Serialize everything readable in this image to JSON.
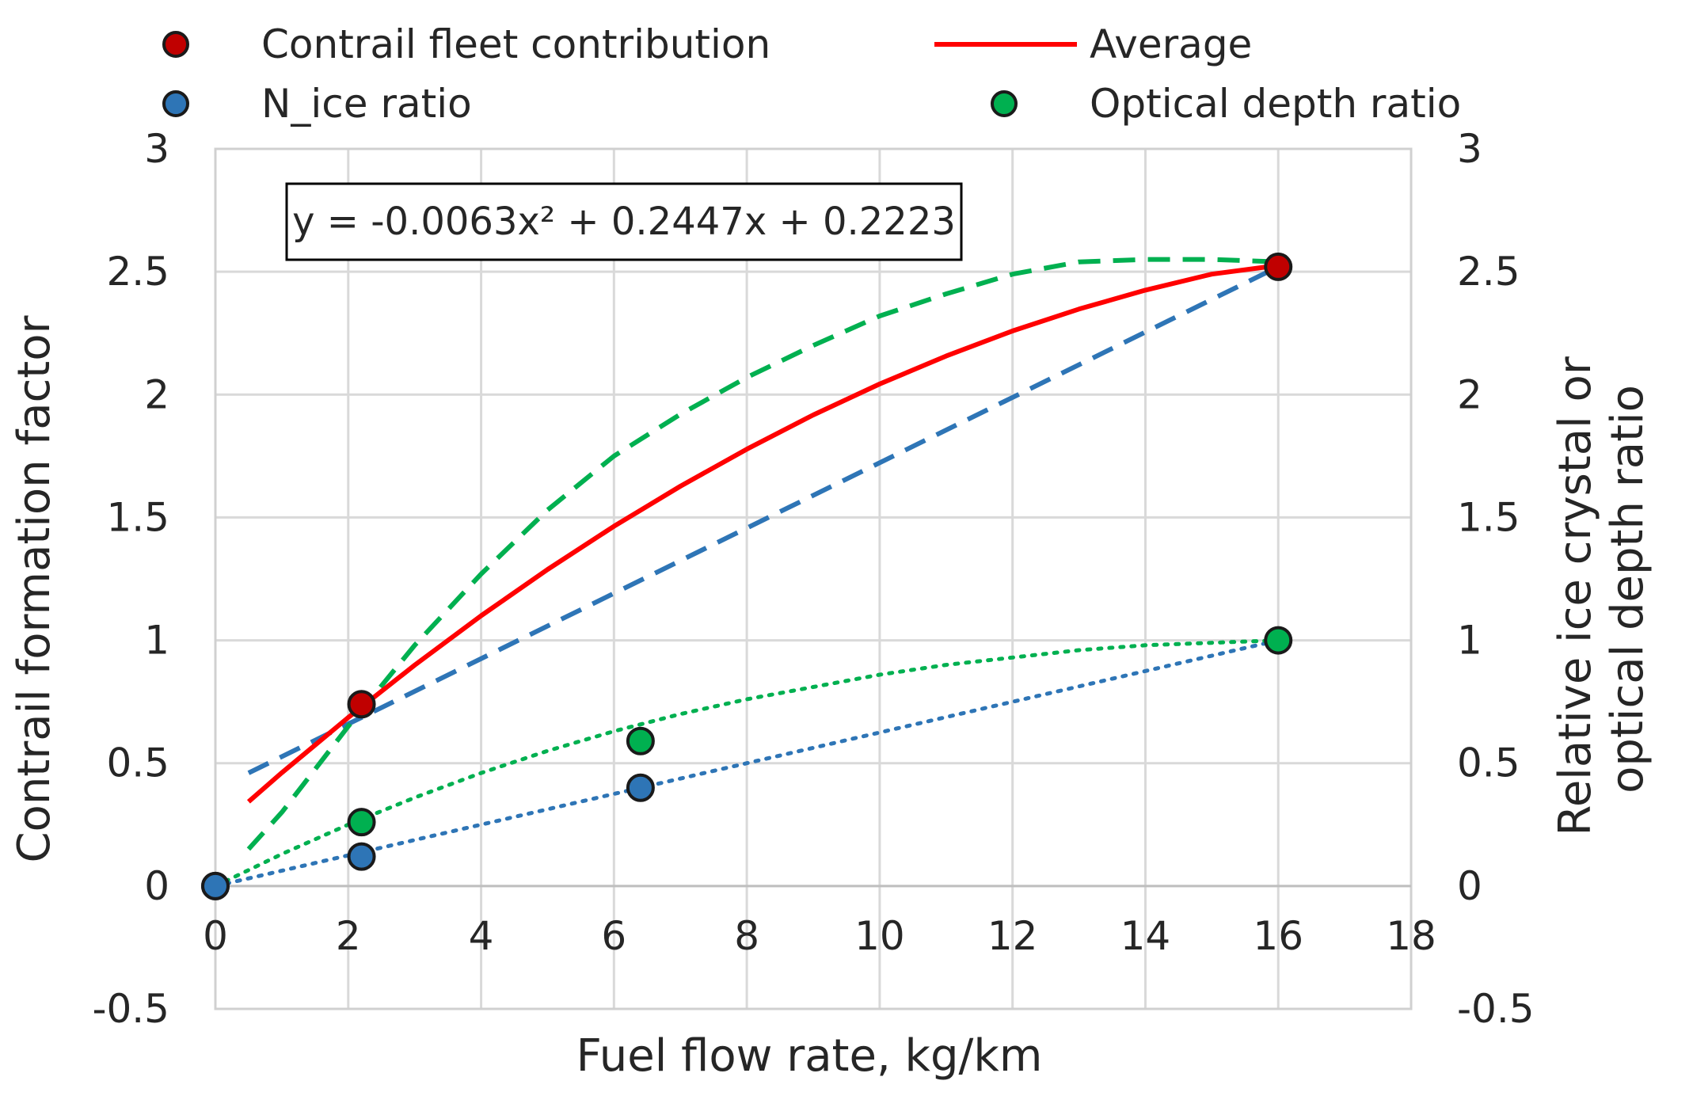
{
  "chart_data": {
    "type": "scatter",
    "xlabel": "Fuel flow rate, kg/km",
    "ylabel": "Contrail formation factor",
    "y2label_lines": [
      "Relative ice crystal or",
      "optical depth ratio"
    ],
    "xlim": [
      0,
      18
    ],
    "ylim": [
      -0.5,
      3
    ],
    "y2lim": [
      -0.5,
      3
    ],
    "x_ticks": [
      "0",
      "2",
      "4",
      "6",
      "8",
      "10",
      "12",
      "14",
      "16",
      "18"
    ],
    "y_ticks": [
      "-0.5",
      "0",
      "0.5",
      "1",
      "1.5",
      "2",
      "2.5",
      "3"
    ],
    "y2_ticks": [
      "-0.5",
      "0",
      "0.5",
      "1",
      "1.5",
      "2",
      "2.5",
      "3"
    ],
    "grid": true,
    "legend_position": "top",
    "equation": "y = -0.0063x² + 0.2447x + 0.2223",
    "series": [
      {
        "name": "Contrail fleet contribution",
        "kind": "marker",
        "color": "#c00000",
        "x": [
          2.2,
          16
        ],
        "y": [
          0.74,
          2.52
        ]
      },
      {
        "name": "N_ice ratio",
        "kind": "marker",
        "color": "#2e75b6",
        "x": [
          0,
          2.2,
          6.4
        ],
        "y": [
          0,
          0.12,
          0.4
        ]
      },
      {
        "name": "Optical depth ratio",
        "kind": "marker",
        "color": "#00b050",
        "x": [
          0,
          2.2,
          6.4,
          16
        ],
        "y": [
          0,
          0.26,
          0.59,
          1.0
        ]
      },
      {
        "name": "Average",
        "kind": "line",
        "color": "#ff0000",
        "x": [
          0.5,
          1,
          2,
          3,
          4,
          5,
          6,
          7,
          8,
          9,
          10,
          11,
          12,
          13,
          14,
          15,
          16
        ],
        "y": [
          0.343,
          0.461,
          0.686,
          0.899,
          1.1,
          1.288,
          1.464,
          1.627,
          1.778,
          1.917,
          2.043,
          2.157,
          2.259,
          2.348,
          2.425,
          2.49,
          2.526
        ]
      }
    ],
    "trendlines": [
      {
        "color": "#2e75b6",
        "dash": "dashed",
        "x": [
          0.5,
          16
        ],
        "y": [
          0.46,
          2.52
        ]
      },
      {
        "color": "#00b050",
        "dash": "dashed",
        "x": [
          0.5,
          1,
          2,
          3,
          4,
          5,
          6,
          7,
          8,
          9,
          10,
          11,
          12,
          13,
          14,
          15,
          16
        ],
        "y": [
          0.15,
          0.3,
          0.65,
          0.98,
          1.27,
          1.53,
          1.75,
          1.92,
          2.07,
          2.2,
          2.32,
          2.41,
          2.49,
          2.54,
          2.55,
          2.55,
          2.54
        ]
      },
      {
        "color": "#2e75b6",
        "dash": "dotted",
        "x": [
          0,
          16
        ],
        "y": [
          0,
          1.0
        ]
      },
      {
        "color": "#00b050",
        "dash": "dotted",
        "x": [
          0,
          1,
          2,
          3,
          4,
          5,
          6,
          7,
          8,
          9,
          10,
          11,
          12,
          13,
          14,
          15,
          16
        ],
        "y": [
          0,
          0.13,
          0.25,
          0.36,
          0.46,
          0.55,
          0.63,
          0.7,
          0.76,
          0.81,
          0.86,
          0.9,
          0.93,
          0.96,
          0.98,
          0.99,
          1.0
        ]
      }
    ]
  }
}
